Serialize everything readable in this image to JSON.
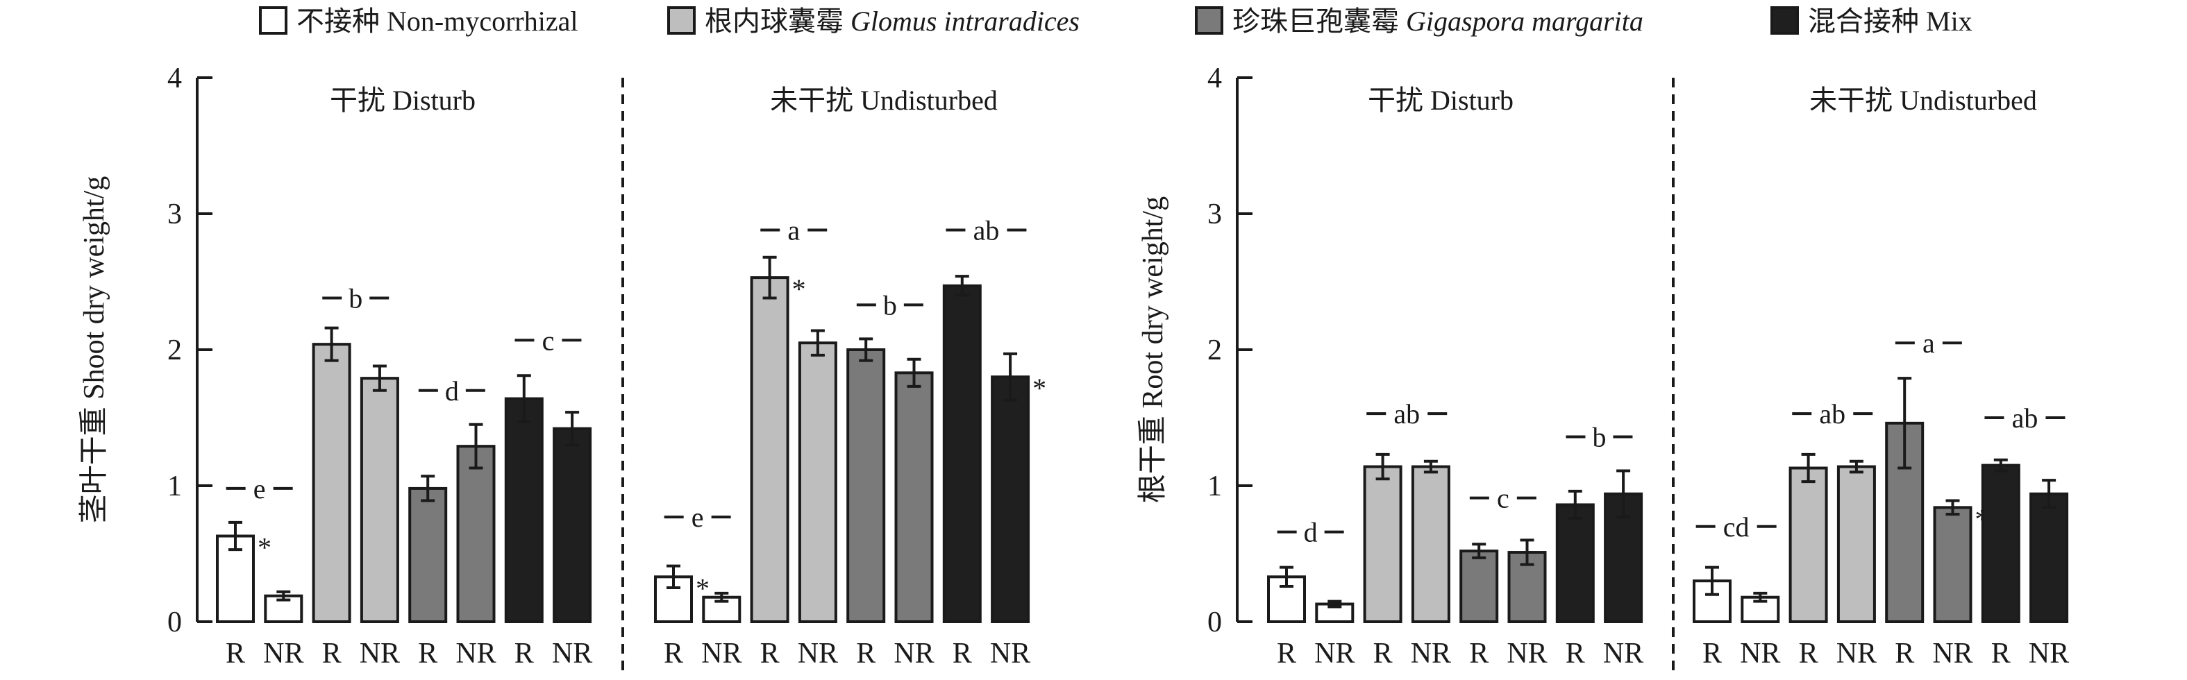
{
  "legend": [
    {
      "label_zh": "不接种",
      "label_en": "Non-mycorrhizal",
      "italic": false,
      "color": "#ffffff"
    },
    {
      "label_zh": "根内球囊霉",
      "label_en": "Glomus intraradices",
      "italic": true,
      "color": "#bebebe"
    },
    {
      "label_zh": "珍珠巨孢囊霉",
      "label_en": "Gigaspora margarita",
      "italic": true,
      "color": "#7a7a7a"
    },
    {
      "label_zh": "混合接种",
      "label_en": "Mix",
      "italic": false,
      "color": "#1f1f1f"
    }
  ],
  "chart_data": [
    {
      "type": "bar",
      "ylabel": "茎叶干重 Shoot dry weight/g",
      "ylim": [
        0,
        4
      ],
      "yticks": [
        0,
        1,
        2,
        3,
        4
      ],
      "groups": [
        "干扰 Disturb",
        "未干扰 Undisturbed"
      ],
      "categories": [
        "R",
        "NR",
        "R",
        "NR",
        "R",
        "NR",
        "R",
        "NR"
      ],
      "series_colors": [
        "#ffffff",
        "#ffffff",
        "#bebebe",
        "#bebebe",
        "#7a7a7a",
        "#7a7a7a",
        "#1f1f1f",
        "#1f1f1f"
      ],
      "values": [
        [
          0.63,
          0.19,
          2.04,
          1.79,
          0.98,
          1.29,
          1.64,
          1.42
        ],
        [
          0.33,
          0.18,
          2.53,
          2.05,
          2.0,
          1.83,
          2.47,
          1.8
        ]
      ],
      "errors": [
        [
          0.1,
          0.03,
          0.12,
          0.09,
          0.09,
          0.16,
          0.17,
          0.12
        ],
        [
          0.08,
          0.03,
          0.15,
          0.09,
          0.08,
          0.1,
          0.07,
          0.17
        ]
      ],
      "stars": [
        [
          true,
          false,
          false,
          false,
          false,
          false,
          false,
          false
        ],
        [
          true,
          false,
          true,
          false,
          false,
          false,
          false,
          true
        ]
      ],
      "letters": [
        [
          {
            "text": "e",
            "y": 0.98
          },
          {
            "text": "b",
            "y": 2.38
          },
          {
            "text": "d",
            "y": 1.7
          },
          {
            "text": "c",
            "y": 2.07
          }
        ],
        [
          {
            "text": "e",
            "y": 0.77
          },
          {
            "text": "a",
            "y": 2.88
          },
          {
            "text": "b",
            "y": 2.33
          },
          {
            "text": "ab",
            "y": 2.88
          }
        ]
      ]
    },
    {
      "type": "bar",
      "ylabel": "根干重 Root dry weight/g",
      "ylim": [
        0,
        4
      ],
      "yticks": [
        0,
        1,
        2,
        3,
        4
      ],
      "groups": [
        "干扰 Disturb",
        "未干扰 Undisturbed"
      ],
      "categories": [
        "R",
        "NR",
        "R",
        "NR",
        "R",
        "NR",
        "R",
        "NR"
      ],
      "series_colors": [
        "#ffffff",
        "#ffffff",
        "#bebebe",
        "#bebebe",
        "#7a7a7a",
        "#7a7a7a",
        "#1f1f1f",
        "#1f1f1f"
      ],
      "values": [
        [
          0.33,
          0.13,
          1.14,
          1.14,
          0.52,
          0.51,
          0.86,
          0.94
        ],
        [
          0.3,
          0.18,
          1.13,
          1.14,
          1.46,
          0.84,
          1.15,
          0.94
        ]
      ],
      "errors": [
        [
          0.07,
          0.02,
          0.09,
          0.04,
          0.05,
          0.09,
          0.1,
          0.17
        ],
        [
          0.1,
          0.03,
          0.1,
          0.04,
          0.33,
          0.05,
          0.04,
          0.1
        ]
      ],
      "stars": [
        [
          false,
          false,
          false,
          false,
          false,
          false,
          false,
          false
        ],
        [
          false,
          false,
          false,
          false,
          false,
          true,
          false,
          false
        ]
      ],
      "letters": [
        [
          {
            "text": "d",
            "y": 0.66
          },
          {
            "text": "ab",
            "y": 1.53
          },
          {
            "text": "c",
            "y": 0.91
          },
          {
            "text": "b",
            "y": 1.36
          }
        ],
        [
          {
            "text": "cd",
            "y": 0.7
          },
          {
            "text": "ab",
            "y": 1.53
          },
          {
            "text": "a",
            "y": 2.05
          },
          {
            "text": "ab",
            "y": 1.5
          }
        ]
      ]
    }
  ]
}
